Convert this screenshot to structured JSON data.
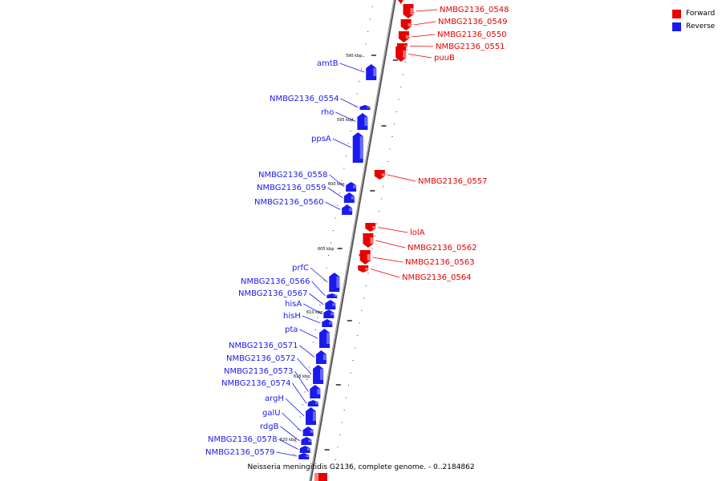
{
  "colors": {
    "forward": "#e60000",
    "reverse": "#1a1aee",
    "backbone": "#8c8c8c"
  },
  "legend": [
    {
      "label": "Forward",
      "color": "#e60000"
    },
    {
      "label": "Reverse",
      "color": "#1a1aee"
    }
  ],
  "caption": "Neisseria meningitidis G2136, complete genome. - 0..2184862",
  "ticks": [
    {
      "label": "590 kbp"
    },
    {
      "label": "595 kbp"
    },
    {
      "label": "600 kbp"
    },
    {
      "label": "605 kbp"
    },
    {
      "label": "610 kbp"
    },
    {
      "label": "615 kbp"
    },
    {
      "label": "620 kbp"
    }
  ],
  "forward_genes": [
    {
      "name": "NMBG2136_0548"
    },
    {
      "name": "NMBG2136_0549"
    },
    {
      "name": "NMBG2136_0550"
    },
    {
      "name": "NMBG2136_0551"
    },
    {
      "name": "puuB"
    },
    {
      "name": "NMBG2136_0557"
    },
    {
      "name": "lolA"
    },
    {
      "name": "NMBG2136_0562"
    },
    {
      "name": "NMBG2136_0563"
    },
    {
      "name": "NMBG2136_0564"
    }
  ],
  "reverse_genes": [
    {
      "name": "amtB"
    },
    {
      "name": "NMBG2136_0554"
    },
    {
      "name": "rho"
    },
    {
      "name": "ppsA"
    },
    {
      "name": "NMBG2136_0558"
    },
    {
      "name": "NMBG2136_0559"
    },
    {
      "name": "NMBG2136_0560"
    },
    {
      "name": "prfC"
    },
    {
      "name": "NMBG2136_0566"
    },
    {
      "name": "NMBG2136_0567"
    },
    {
      "name": "hisA"
    },
    {
      "name": "hisH"
    },
    {
      "name": "pta"
    },
    {
      "name": "NMBG2136_0571"
    },
    {
      "name": "NMBG2136_0572"
    },
    {
      "name": "NMBG2136_0573"
    },
    {
      "name": "NMBG2136_0574"
    },
    {
      "name": "argH"
    },
    {
      "name": "galU"
    },
    {
      "name": "rdgB"
    },
    {
      "name": "NMBG2136_0578"
    },
    {
      "name": "NMBG2136_0579"
    }
  ]
}
